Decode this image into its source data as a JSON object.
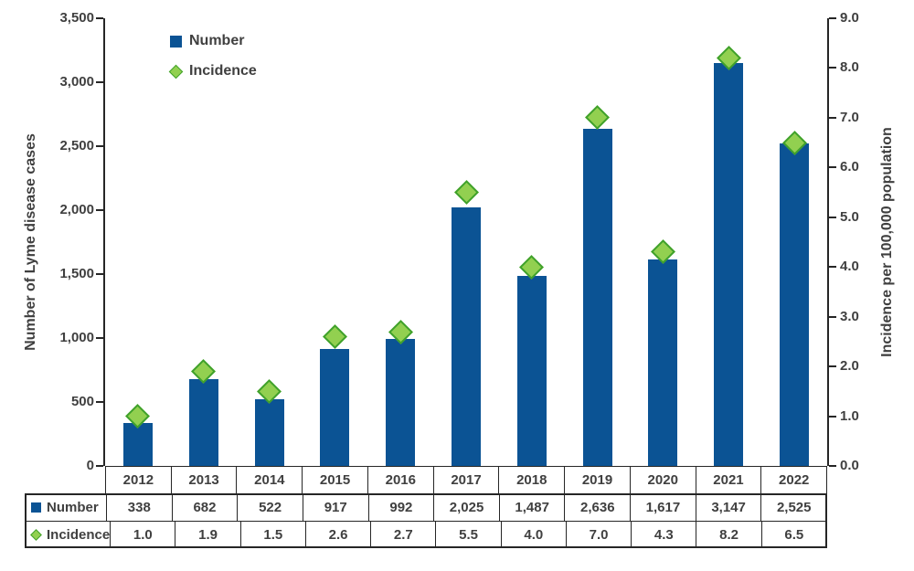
{
  "chart_data": {
    "type": "combo-bar-scatter",
    "categories": [
      "2012",
      "2013",
      "2014",
      "2015",
      "2016",
      "2017",
      "2018",
      "2019",
      "2020",
      "2021",
      "2022"
    ],
    "series": [
      {
        "name": "Number",
        "type": "bar",
        "axis": "left",
        "marker": "square",
        "color": "#0B5394",
        "values": [
          338,
          682,
          522,
          917,
          992,
          2025,
          1487,
          2636,
          1617,
          3147,
          2525
        ],
        "labels": [
          "338",
          "682",
          "522",
          "917",
          "992",
          "2,025",
          "1,487",
          "2,636",
          "1,617",
          "3,147",
          "2,525"
        ]
      },
      {
        "name": "Incidence",
        "type": "scatter",
        "axis": "right",
        "marker": "diamond",
        "color": "#92D050",
        "border_color": "#3FA12B",
        "values": [
          1.0,
          1.9,
          1.5,
          2.6,
          2.7,
          5.5,
          4.0,
          7.0,
          4.3,
          8.2,
          6.5
        ],
        "labels": [
          "1.0",
          "1.9",
          "1.5",
          "2.6",
          "2.7",
          "5.5",
          "4.0",
          "7.0",
          "4.3",
          "8.2",
          "6.5"
        ]
      }
    ],
    "left_axis": {
      "title": "Number of Lyme disease cases",
      "min": 0,
      "max": 3500,
      "step": 500,
      "tick_labels": [
        "0",
        "500",
        "1,000",
        "1,500",
        "2,000",
        "2,500",
        "3,000",
        "3,500"
      ]
    },
    "right_axis": {
      "title": "Incidence per 100,000 population",
      "min": 0,
      "max": 9,
      "step": 1,
      "tick_labels": [
        "0.0",
        "1.0",
        "2.0",
        "3.0",
        "4.0",
        "5.0",
        "6.0",
        "7.0",
        "8.0",
        "9.0"
      ]
    },
    "legend": {
      "position": "top-left",
      "items": [
        "Number",
        "Incidence"
      ]
    },
    "grid": false,
    "data_table": {
      "shown": true,
      "row_labels": [
        "Number",
        "Incidence"
      ]
    }
  },
  "colors": {
    "bar": "#0B5394",
    "diamond_fill": "#92D050",
    "diamond_border": "#3FA12B",
    "text": "#404040",
    "line": "#262626"
  }
}
